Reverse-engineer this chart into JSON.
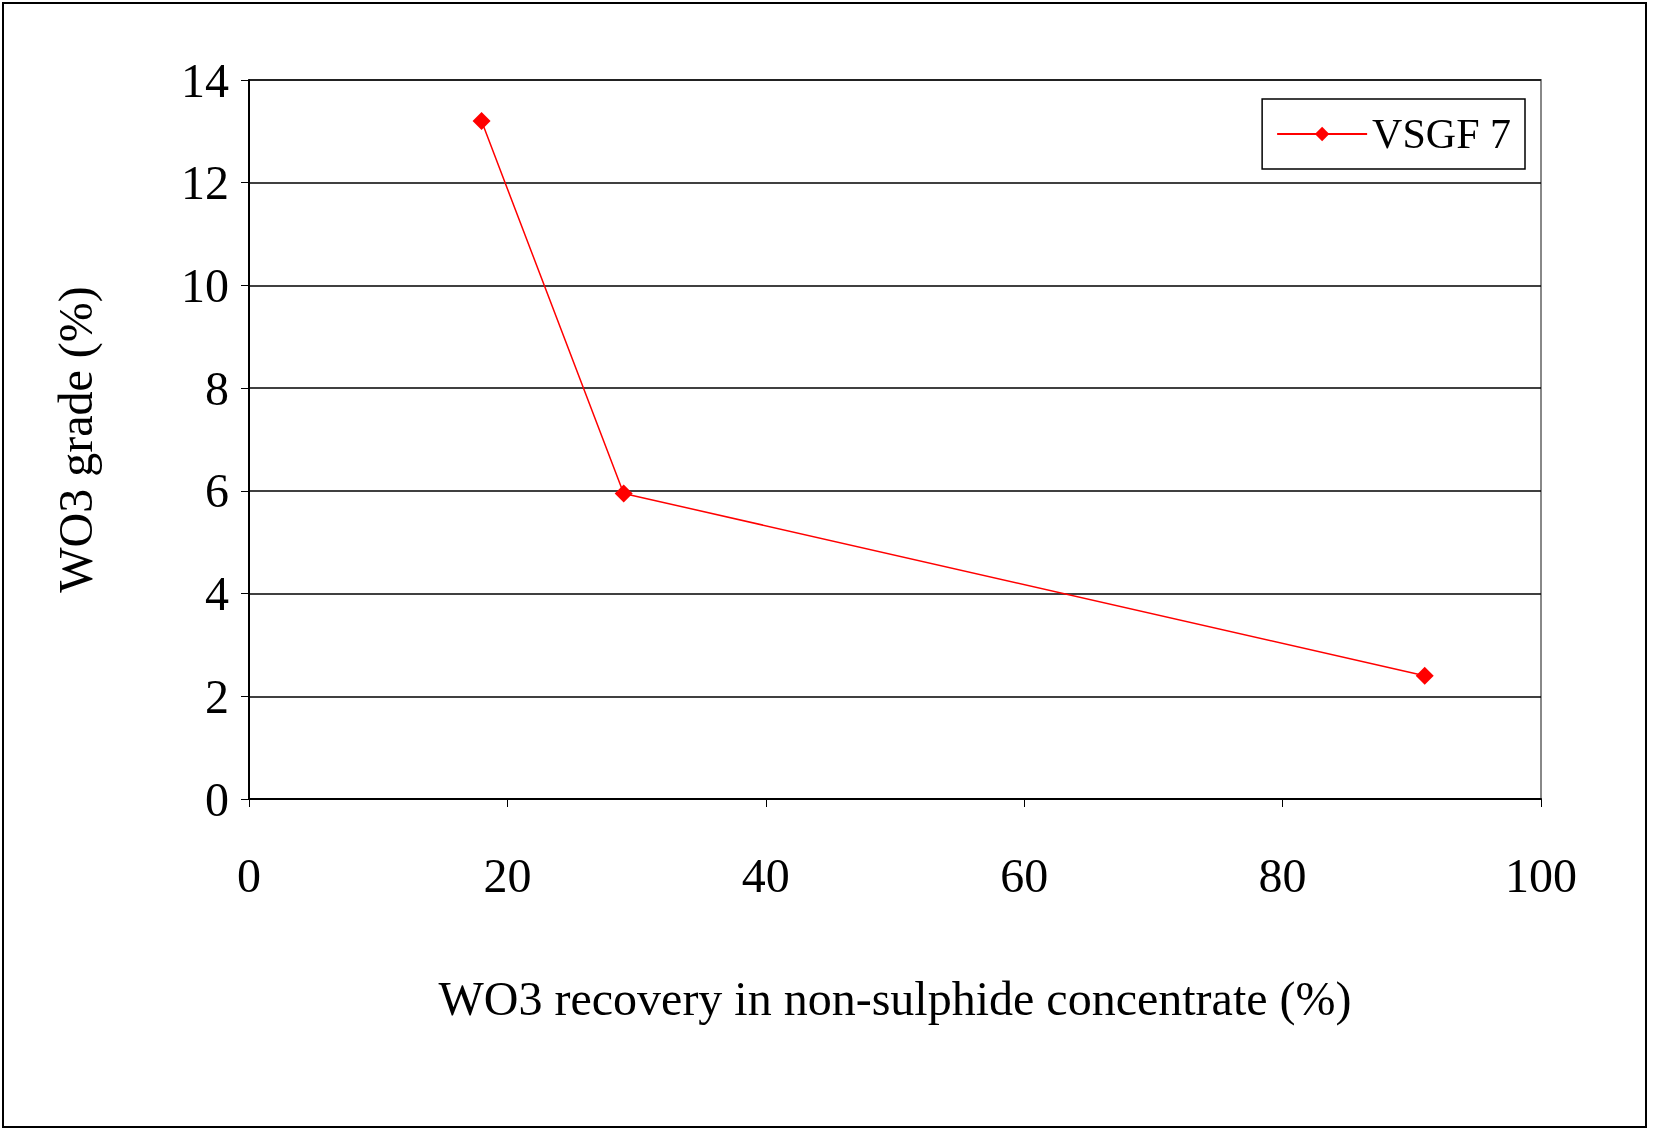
{
  "chart_data": {
    "type": "line",
    "xlabel": "WO3 recovery in non-sulphide concentrate (%)",
    "ylabel": "WO3 grade (%)",
    "x": [
      18,
      29,
      91
    ],
    "series": [
      {
        "name": "VSGF 7",
        "color": "#ff0000",
        "values": [
          13.2,
          5.95,
          2.4
        ]
      }
    ],
    "xlim": [
      0,
      100
    ],
    "xticks": [
      0,
      20,
      40,
      60,
      80,
      100
    ],
    "ylim": [
      0,
      14
    ],
    "yticks": [
      0,
      2,
      4,
      6,
      8,
      10,
      12,
      14
    ],
    "grid": "y",
    "legend": "top right",
    "marker": "diamond",
    "line_style": "solid"
  }
}
